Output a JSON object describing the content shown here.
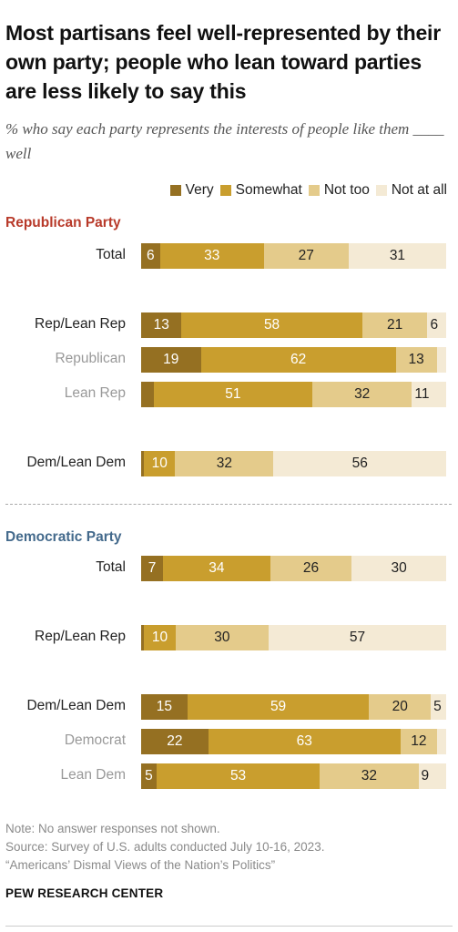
{
  "header": {
    "title": "Most partisans feel well-represented by their own party; people who lean toward parties are less likely to say this",
    "subtitle": "% who say each party represents the interests of people like them ____ well"
  },
  "legend": [
    "Very",
    "Somewhat",
    "Not too",
    "Not at all"
  ],
  "colors": {
    "Very": "#957022",
    "Somewhat": "#C99E2E",
    "Not too": "#E4CB8B",
    "Not at all": "#F4EAD5",
    "republican_heading": "#B83A2A",
    "democratic_heading": "#446A8C"
  },
  "chart_data": {
    "type": "bar",
    "orientation": "horizontal",
    "stacked": true,
    "series_names": [
      "Very",
      "Somewhat",
      "Not too",
      "Not at all"
    ],
    "panels": [
      {
        "title": "Republican Party",
        "rows": [
          {
            "label": "Total",
            "style": "main",
            "values": [
              6,
              33,
              27,
              31
            ],
            "labels": [
              "6",
              "33",
              "27",
              "31"
            ]
          },
          {
            "label": "Rep/Lean Rep",
            "style": "main",
            "values": [
              13,
              58,
              21,
              6
            ],
            "labels": [
              "13",
              "58",
              "21",
              "6"
            ]
          },
          {
            "label": "Republican",
            "style": "sub",
            "values": [
              19,
              62,
              13,
              3
            ],
            "labels": [
              "19",
              "62",
              "13",
              ""
            ]
          },
          {
            "label": "Lean Rep",
            "style": "sub",
            "values": [
              4,
              51,
              32,
              11
            ],
            "labels": [
              "",
              "51",
              "32",
              "11"
            ]
          },
          {
            "label": "Dem/Lean Dem",
            "style": "main",
            "values": [
              1,
              10,
              32,
              56
            ],
            "labels": [
              "",
              "10",
              "32",
              "56"
            ]
          }
        ]
      },
      {
        "title": "Democratic Party",
        "rows": [
          {
            "label": "Total",
            "style": "main",
            "values": [
              7,
              34,
              26,
              30
            ],
            "labels": [
              "7",
              "34",
              "26",
              "30"
            ]
          },
          {
            "label": "Rep/Lean Rep",
            "style": "main",
            "values": [
              1,
              10,
              30,
              57
            ],
            "labels": [
              "",
              "10",
              "30",
              "57"
            ]
          },
          {
            "label": "Dem/Lean Dem",
            "style": "main",
            "values": [
              15,
              59,
              20,
              5
            ],
            "labels": [
              "15",
              "59",
              "20",
              "5"
            ]
          },
          {
            "label": "Democrat",
            "style": "sub",
            "values": [
              22,
              63,
              12,
              3
            ],
            "labels": [
              "22",
              "63",
              "12",
              ""
            ]
          },
          {
            "label": "Lean Dem",
            "style": "sub",
            "values": [
              5,
              53,
              32,
              9
            ],
            "labels": [
              "5",
              "53",
              "32",
              "9"
            ]
          }
        ]
      }
    ]
  },
  "notes": {
    "line1": "Note: No answer responses not shown.",
    "line2": "Source: Survey of U.S. adults conducted July 10-16, 2023.",
    "line3": "“Americans’ Dismal Views of the Nation’s Politics”"
  },
  "footer": {
    "brand": "PEW RESEARCH CENTER"
  }
}
